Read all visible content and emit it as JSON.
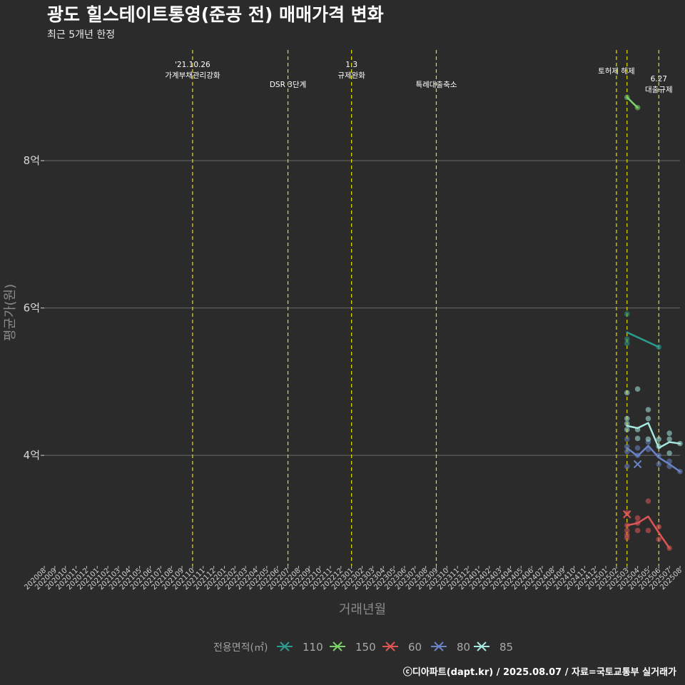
{
  "title": "광도 힐스테이트통영(준공 전) 매매가격 변화",
  "subtitle": "최근 5개년 한정",
  "caption": "ⓒ디아파트(dapt.kr) / 2025.08.07 / 자료=국토교통부 실거래가",
  "chart_data": {
    "type": "line",
    "xlabel": "거래년월",
    "ylabel": "평균가(원)",
    "ylim": [
      2.5,
      9.6
    ],
    "yticks": [
      {
        "value": 4,
        "label": "4억"
      },
      {
        "value": 6,
        "label": "6억"
      },
      {
        "value": 8,
        "label": "8억"
      }
    ],
    "x_categories": [
      "202008",
      "202009",
      "202010",
      "202011",
      "202012",
      "202101",
      "202102",
      "202103",
      "202104",
      "202105",
      "202106",
      "202107",
      "202108",
      "202109",
      "202110",
      "202111",
      "202112",
      "202201",
      "202202",
      "202203",
      "202204",
      "202205",
      "202206",
      "202207",
      "202208",
      "202209",
      "202210",
      "202211",
      "202212",
      "202301",
      "202302",
      "202303",
      "202304",
      "202305",
      "202306",
      "202307",
      "202308",
      "202309",
      "202310",
      "202311",
      "202312",
      "202401",
      "202402",
      "202403",
      "202404",
      "202405",
      "202406",
      "202407",
      "202408",
      "202409",
      "202410",
      "202411",
      "202412",
      "202501",
      "202502",
      "202503",
      "202504",
      "202505",
      "202506",
      "202507",
      "202508"
    ],
    "events": [
      {
        "x": "202110",
        "label": "'21.10.26\n가계부채관리강화",
        "row": 0
      },
      {
        "x": "202207",
        "label": "DSR 3단계",
        "row": 1
      },
      {
        "x": "202301",
        "label": "1.3\n규제완화",
        "row": 0
      },
      {
        "x": "202309",
        "label": "특례대출축소",
        "row": 1
      },
      {
        "x": "202502",
        "label": "토허제 해제",
        "row": 0
      },
      {
        "x": "202503",
        "label": "",
        "row": 0
      },
      {
        "x": "202506",
        "label": "6.27\n대출규제",
        "row": 1
      }
    ],
    "legend_title": "전용면적(㎡)",
    "series": [
      {
        "name": "110",
        "color": "#2a9d8f",
        "line": [
          {
            "x": "202503",
            "y": 5.67
          },
          {
            "x": "202506",
            "y": 5.47
          }
        ],
        "points": [
          {
            "x": "202503",
            "y": 5.92
          },
          {
            "x": "202503",
            "y": 5.58
          },
          {
            "x": "202503",
            "y": 5.52
          },
          {
            "x": "202506",
            "y": 5.47
          }
        ],
        "cancelled": []
      },
      {
        "name": "150",
        "color": "#7ed36a",
        "line": [
          {
            "x": "202503",
            "y": 8.86
          },
          {
            "x": "202504",
            "y": 8.72
          }
        ],
        "points": [
          {
            "x": "202503",
            "y": 8.86
          },
          {
            "x": "202504",
            "y": 8.72
          }
        ],
        "cancelled": []
      },
      {
        "name": "60",
        "color": "#e05555",
        "line": [
          {
            "x": "202503",
            "y": 3.05
          },
          {
            "x": "202504",
            "y": 3.08
          },
          {
            "x": "202505",
            "y": 3.17
          },
          {
            "x": "202506",
            "y": 2.95
          },
          {
            "x": "202507",
            "y": 2.74
          }
        ],
        "points": [
          {
            "x": "202503",
            "y": 3.22
          },
          {
            "x": "202503",
            "y": 3.05
          },
          {
            "x": "202503",
            "y": 2.98
          },
          {
            "x": "202503",
            "y": 2.92
          },
          {
            "x": "202503",
            "y": 2.88
          },
          {
            "x": "202504",
            "y": 3.15
          },
          {
            "x": "202504",
            "y": 3.08
          },
          {
            "x": "202504",
            "y": 2.98
          },
          {
            "x": "202505",
            "y": 3.38
          },
          {
            "x": "202505",
            "y": 2.98
          },
          {
            "x": "202506",
            "y": 3.03
          },
          {
            "x": "202506",
            "y": 2.86
          },
          {
            "x": "202507",
            "y": 2.74
          }
        ],
        "cancelled": [
          {
            "x": "202503",
            "y": 3.2
          }
        ]
      },
      {
        "name": "80",
        "color": "#6a84c8",
        "line": [
          {
            "x": "202503",
            "y": 4.1
          },
          {
            "x": "202504",
            "y": 3.99
          },
          {
            "x": "202505",
            "y": 4.13
          },
          {
            "x": "202506",
            "y": 3.97
          },
          {
            "x": "202507",
            "y": 3.88
          },
          {
            "x": "202508",
            "y": 3.78
          }
        ],
        "points": [
          {
            "x": "202503",
            "y": 4.22
          },
          {
            "x": "202503",
            "y": 4.12
          },
          {
            "x": "202503",
            "y": 4.05
          },
          {
            "x": "202503",
            "y": 3.85
          },
          {
            "x": "202504",
            "y": 4.1
          },
          {
            "x": "202504",
            "y": 4.0
          },
          {
            "x": "202505",
            "y": 4.18
          },
          {
            "x": "202505",
            "y": 4.08
          },
          {
            "x": "202506",
            "y": 4.0
          },
          {
            "x": "202506",
            "y": 3.88
          },
          {
            "x": "202507",
            "y": 3.92
          },
          {
            "x": "202507",
            "y": 3.85
          },
          {
            "x": "202508",
            "y": 3.78
          }
        ],
        "cancelled": [
          {
            "x": "202504",
            "y": 3.88
          }
        ]
      },
      {
        "name": "85",
        "color": "#a6e8de",
        "line": [
          {
            "x": "202503",
            "y": 4.4
          },
          {
            "x": "202504",
            "y": 4.37
          },
          {
            "x": "202505",
            "y": 4.44
          },
          {
            "x": "202506",
            "y": 4.1
          },
          {
            "x": "202507",
            "y": 4.18
          },
          {
            "x": "202508",
            "y": 4.16
          }
        ],
        "points": [
          {
            "x": "202503",
            "y": 4.85
          },
          {
            "x": "202503",
            "y": 4.5
          },
          {
            "x": "202503",
            "y": 4.43
          },
          {
            "x": "202503",
            "y": 4.35
          },
          {
            "x": "202504",
            "y": 4.9
          },
          {
            "x": "202504",
            "y": 4.35
          },
          {
            "x": "202504",
            "y": 4.23
          },
          {
            "x": "202505",
            "y": 4.62
          },
          {
            "x": "202505",
            "y": 4.5
          },
          {
            "x": "202505",
            "y": 4.22
          },
          {
            "x": "202506",
            "y": 4.22
          },
          {
            "x": "202506",
            "y": 4.12
          },
          {
            "x": "202507",
            "y": 4.3
          },
          {
            "x": "202507",
            "y": 4.22
          },
          {
            "x": "202507",
            "y": 4.03
          },
          {
            "x": "202508",
            "y": 4.16
          }
        ],
        "cancelled": []
      }
    ]
  }
}
